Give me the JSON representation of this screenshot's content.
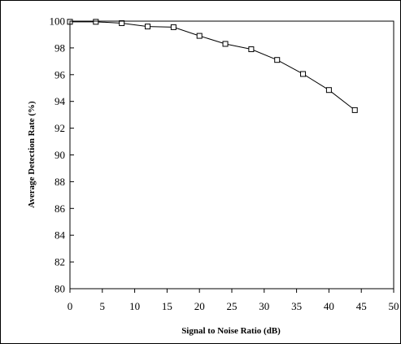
{
  "chart_data": {
    "type": "line",
    "title": "",
    "xlabel": "Signal to Noise Ratio (dB)",
    "ylabel": "Average Detection Rate (%)",
    "xlim": [
      0,
      50
    ],
    "ylim": [
      80,
      100
    ],
    "xticks": [
      0,
      5,
      10,
      15,
      20,
      25,
      30,
      35,
      40,
      45,
      50
    ],
    "yticks": [
      80,
      82,
      84,
      86,
      88,
      90,
      92,
      94,
      96,
      98,
      100
    ],
    "grid": false,
    "legend": "none",
    "series": [
      {
        "marker": "square",
        "color": "#000000",
        "x": [
          0,
          4,
          8,
          12,
          16,
          20,
          24,
          28,
          32,
          36,
          40,
          44
        ],
        "y": [
          99.95,
          99.95,
          99.85,
          99.6,
          99.55,
          98.9,
          98.3,
          97.9,
          97.1,
          96.05,
          94.85,
          93.35
        ]
      }
    ]
  }
}
